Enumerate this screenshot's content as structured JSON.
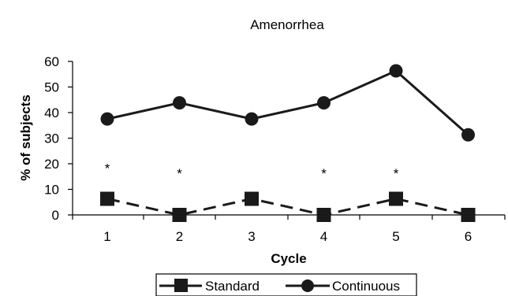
{
  "chart_data": {
    "type": "line",
    "title": "Amenorrhea",
    "xlabel": "Cycle",
    "ylabel": "% of subjects",
    "x": [
      1,
      2,
      3,
      4,
      5,
      6
    ],
    "ylim": [
      0,
      60
    ],
    "yticks": [
      0,
      10,
      20,
      30,
      40,
      50,
      60
    ],
    "grid": false,
    "legend_position": "bottom",
    "series": [
      {
        "name": "Standard",
        "values": [
          6.3,
          0,
          6.3,
          0,
          6.3,
          0
        ],
        "marker": "square",
        "line_style": "dashed",
        "color": "#1a1a1a"
      },
      {
        "name": "Continuous",
        "values": [
          37.5,
          43.8,
          37.5,
          43.8,
          56.3,
          31.3
        ],
        "marker": "circle",
        "line_style": "solid",
        "color": "#1a1a1a"
      }
    ],
    "annotations": [
      {
        "x": 1,
        "y": 19,
        "text": "*"
      },
      {
        "x": 2,
        "y": 17,
        "text": "*"
      },
      {
        "x": 4,
        "y": 17,
        "text": "*"
      },
      {
        "x": 5,
        "y": 17,
        "text": "*"
      }
    ]
  }
}
